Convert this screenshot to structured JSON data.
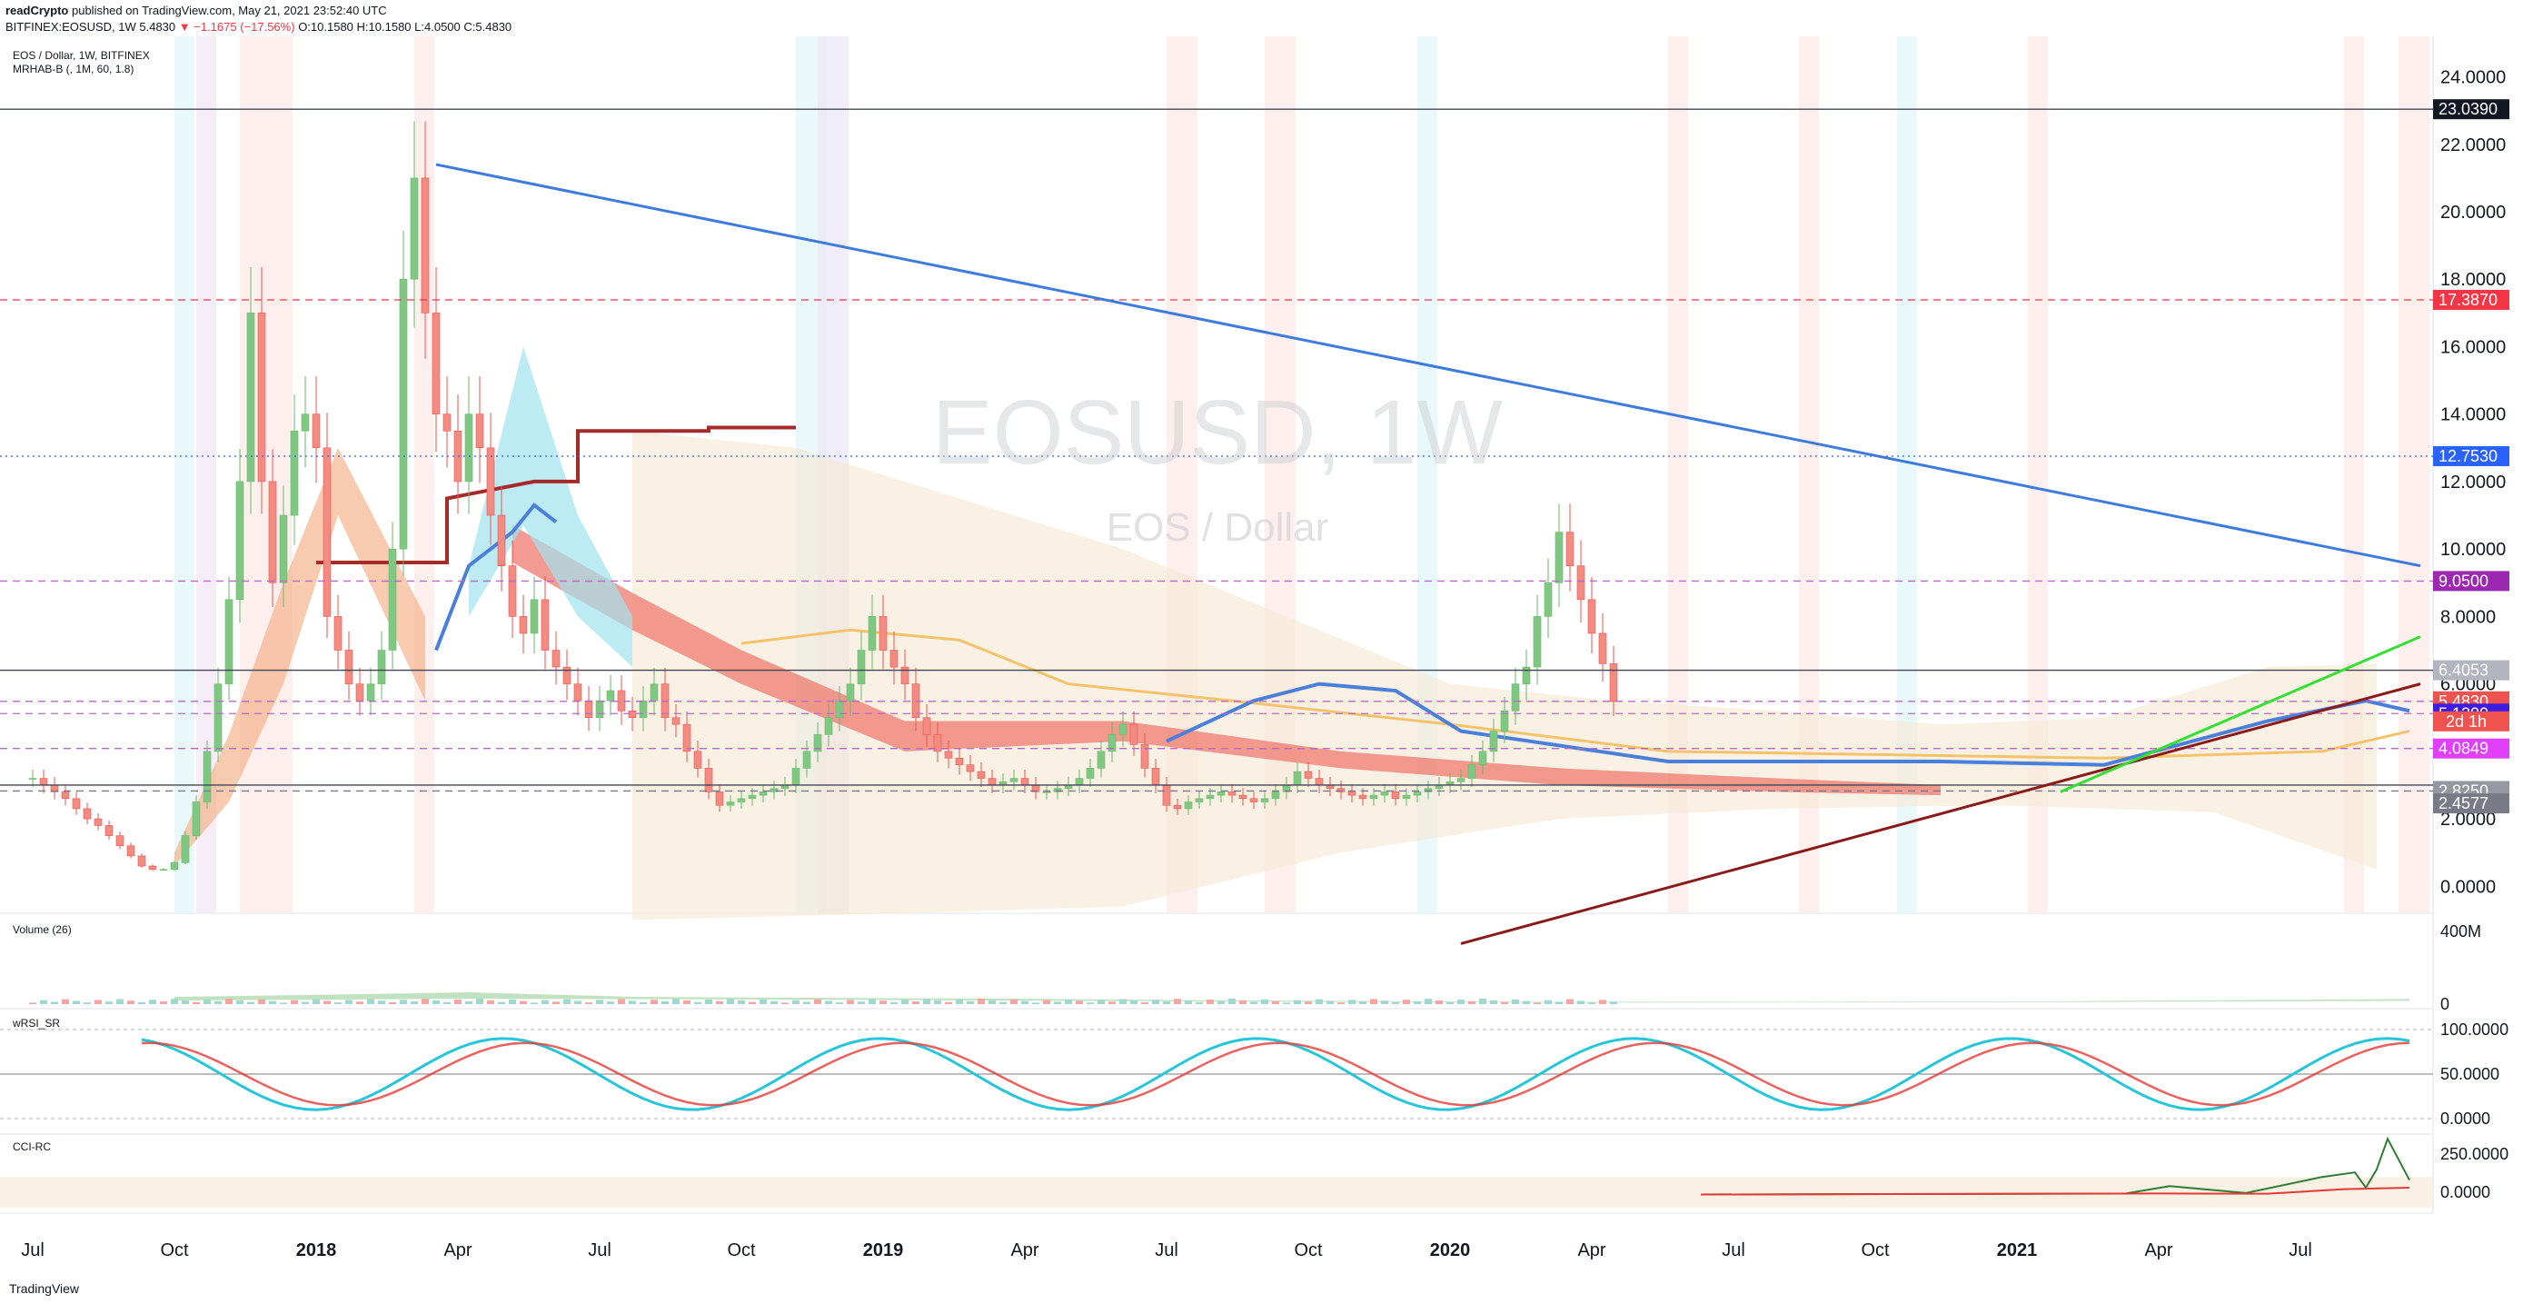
{
  "header": {
    "publisher": "readCrypto",
    "published": "published on TradingView.com, May 21, 2021 23:52:40 UTC",
    "symbol": "BITFINEX:EOSUSD, 1W",
    "last": "5.4830",
    "change": "▼ −1.1675 (−17.56%)",
    "o": "O:10.1580",
    "h": "H:10.1580",
    "l": "L:4.0500",
    "c": "C:5.4830"
  },
  "footer": {
    "logo_text": "TradingView"
  },
  "chart_data": [
    {
      "type": "candlestick",
      "title": "EOS / Dollar, 1W, BITFINEX",
      "indicator_label": "MRHAB-B (, 1M, 60, 1.8)",
      "watermark": "EOSUSD, 1W",
      "watermark_sub": "EOS / Dollar",
      "ylim": [
        -0.8,
        25.2
      ],
      "yticks": [
        "0.0000",
        "2.0000",
        "4.0000",
        "6.0000",
        "8.0000",
        "10.0000",
        "12.0000",
        "14.0000",
        "16.0000",
        "18.0000",
        "20.0000",
        "22.0000",
        "24.0000"
      ],
      "ytick_values": [
        0,
        2,
        4,
        6,
        8,
        10,
        12,
        14,
        16,
        18,
        20,
        22,
        24
      ],
      "x_labels": [
        "Jul",
        "Oct",
        "2018",
        "Apr",
        "Jul",
        "Oct",
        "2019",
        "Apr",
        "Jul",
        "Oct",
        "2020",
        "Apr",
        "Jul",
        "Oct",
        "2021",
        "Apr",
        "Jul"
      ],
      "x_label_weeks": [
        0,
        13,
        26,
        39,
        52,
        65,
        78,
        91,
        104,
        117,
        130,
        143,
        156,
        169,
        182,
        195,
        208
      ],
      "close_series": [
        3.2,
        3.0,
        2.8,
        2.6,
        2.3,
        2.0,
        1.8,
        1.5,
        1.2,
        0.9,
        0.6,
        0.5,
        0.5,
        0.7,
        1.5,
        2.5,
        4.0,
        6.0,
        8.5,
        12.0,
        17.0,
        12.0,
        9.0,
        11.0,
        13.5,
        14.0,
        13.0,
        8.0,
        7.0,
        6.0,
        5.5,
        6.0,
        7.0,
        10.0,
        18.0,
        21.0,
        17.0,
        14.0,
        13.5,
        12.0,
        14.0,
        13.0,
        11.0,
        9.5,
        8.0,
        7.5,
        8.5,
        7.0,
        6.5,
        6.0,
        5.5,
        5.0,
        5.5,
        5.8,
        5.2,
        5.0,
        5.5,
        6.0,
        5.0,
        4.8,
        4.0,
        3.5,
        2.8,
        2.4,
        2.5,
        2.6,
        2.7,
        2.8,
        2.9,
        3.0,
        3.5,
        4.0,
        4.5,
        5.0,
        5.5,
        6.0,
        7.0,
        8.0,
        7.0,
        6.5,
        6.0,
        5.0,
        4.5,
        4.0,
        3.8,
        3.6,
        3.4,
        3.2,
        3.0,
        3.1,
        3.2,
        3.0,
        2.8,
        2.8,
        2.9,
        3.0,
        3.2,
        3.5,
        4.0,
        4.5,
        4.8,
        4.2,
        3.5,
        3.0,
        2.4,
        2.3,
        2.5,
        2.6,
        2.7,
        2.8,
        2.7,
        2.6,
        2.5,
        2.6,
        2.8,
        3.0,
        3.4,
        3.2,
        3.0,
        2.9,
        2.8,
        2.7,
        2.6,
        2.7,
        2.8,
        2.6,
        2.7,
        2.8,
        2.9,
        3.0,
        3.1,
        3.2,
        3.6,
        4.0,
        4.6,
        5.2,
        6.0,
        6.5,
        8.0,
        9.0,
        10.5,
        9.5,
        8.5,
        7.5,
        6.6,
        5.48
      ],
      "horizontal_levels": [
        {
          "value": 23.039,
          "label": "23.0390",
          "bg": "#131722",
          "style": "solid",
          "color": "#434651"
        },
        {
          "value": 17.387,
          "label": "17.3870",
          "bg": "#f23645",
          "style": "dashed",
          "color": "#f23645"
        },
        {
          "value": 12.753,
          "label": "12.7530",
          "bg": "#2962ff",
          "style": "dotted",
          "color": "#2962ff"
        },
        {
          "value": 9.05,
          "label": "9.0500",
          "bg": "#9c27b0",
          "style": "dashed",
          "color": "#ba68c8"
        },
        {
          "value": 6.4053,
          "label": "6.4053",
          "bg": "#b2b5be",
          "style": "solid",
          "color": "#434651"
        },
        {
          "value": 5.483,
          "label": "5.4830",
          "bg": "#ef5350",
          "style": "dashed",
          "color": "#ba68c8"
        },
        {
          "value": 5.12,
          "label": "5.1200",
          "bg": "#3f1de0",
          "style": "dashed",
          "color": "#ba68c8"
        },
        {
          "value": 4.0849,
          "label": "4.0849",
          "bg": "#e040fb",
          "style": "dashed",
          "color": "#ba68c8"
        },
        {
          "value": 3.0,
          "label": "",
          "bg": "",
          "style": "solid",
          "color": "#434651"
        },
        {
          "value": 2.825,
          "label": "2.8250",
          "bg": "#9598a1",
          "style": "dashed",
          "color": "#787b86"
        },
        {
          "value": 2.4577,
          "label": "2.4577",
          "bg": "#787b86",
          "style": "none",
          "color": "#787b86"
        }
      ],
      "countdown": "2d 1h",
      "trendlines": [
        {
          "name": "downtrend",
          "color": "#3d7bdc",
          "from": [
            37,
            21.4
          ],
          "to": [
            219,
            9.5
          ]
        },
        {
          "name": "uptrend",
          "color": "#8b1a1a",
          "from": [
            131,
            -1.7
          ],
          "to": [
            219,
            6.0
          ]
        },
        {
          "name": "short-uptrend",
          "color": "#33e133",
          "from": [
            186,
            2.8
          ],
          "to": [
            219,
            7.4
          ]
        }
      ]
    },
    {
      "type": "bar",
      "title": "Volume (26)",
      "yticks": [
        "400M",
        "0"
      ],
      "ytick_values": [
        400,
        0
      ]
    },
    {
      "type": "line",
      "title": "wRSI_SR",
      "yticks": [
        "100.0000",
        "50.0000",
        "0.0000"
      ],
      "ytick_values": [
        100,
        50,
        0
      ]
    },
    {
      "type": "line",
      "title": "CCI-RC",
      "yticks": [
        "250.0000",
        "0.0000"
      ],
      "ytick_values": [
        250,
        0
      ]
    }
  ]
}
